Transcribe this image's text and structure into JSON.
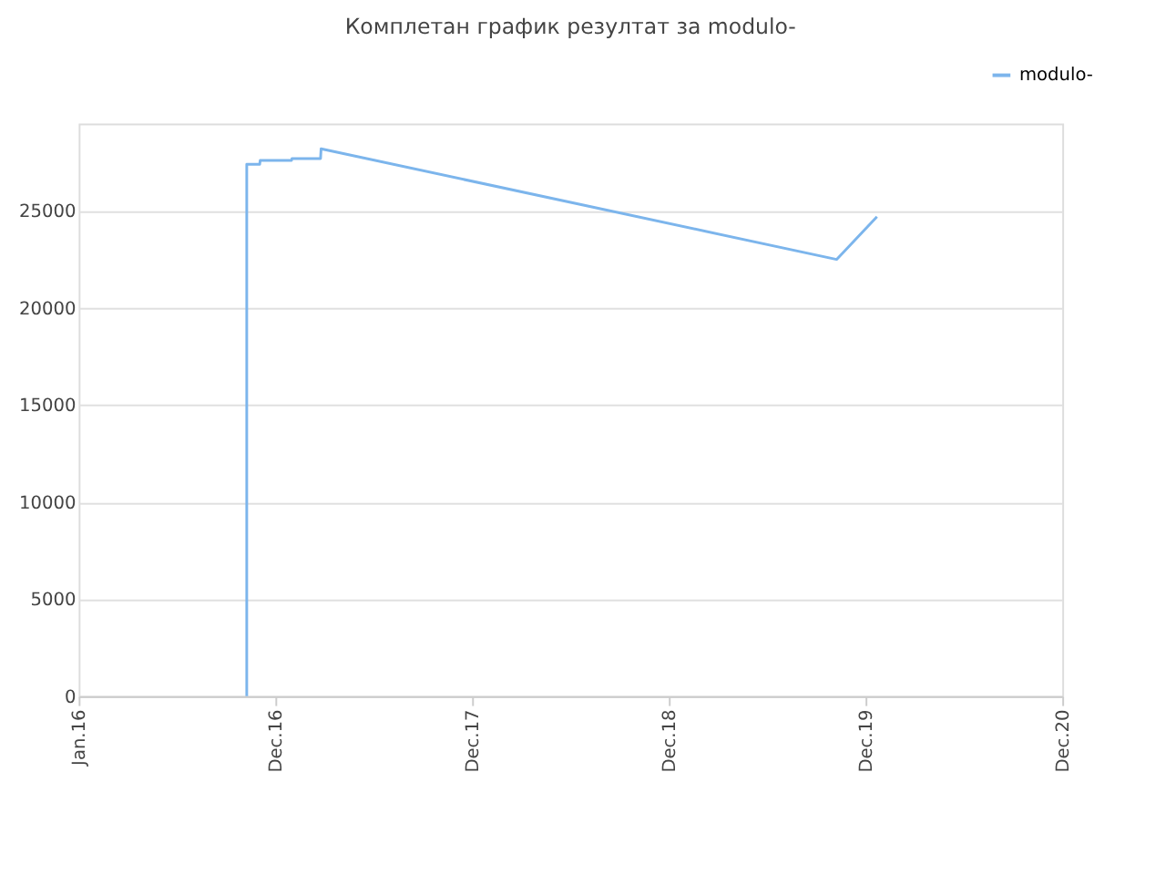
{
  "chart_data": {
    "type": "line",
    "title": "Комплетан график резултат за modulo-",
    "x": [
      "2016-11-08",
      "2016-11-08",
      "2016-12-02",
      "2016-12-03",
      "2017-01-30",
      "2017-01-31",
      "2017-03-25",
      "2017-03-26",
      "2019-11-08",
      "2020-01-22"
    ],
    "series": [
      {
        "name": "modulo-",
        "color": "#7cb5ec",
        "values": [
          0,
          27400,
          27400,
          27600,
          27600,
          27700,
          27700,
          28200,
          22500,
          24700
        ]
      }
    ],
    "xlim": [
      "2016-01-01",
      "2020-12-31"
    ],
    "xticks": [
      {
        "value": "2016-01-01",
        "label": "Jan.16"
      },
      {
        "value": "2016-12-31",
        "label": "Dec.16"
      },
      {
        "value": "2017-12-31",
        "label": "Dec.17"
      },
      {
        "value": "2018-12-31",
        "label": "Dec.18"
      },
      {
        "value": "2019-12-31",
        "label": "Dec.19"
      },
      {
        "value": "2020-12-31",
        "label": "Dec.20"
      }
    ],
    "ylim": [
      0,
      29500
    ],
    "yticks": [
      0,
      5000,
      10000,
      15000,
      20000,
      25000
    ],
    "grid": "y",
    "legend": "top right",
    "marker": "none",
    "line_style": "solid"
  }
}
